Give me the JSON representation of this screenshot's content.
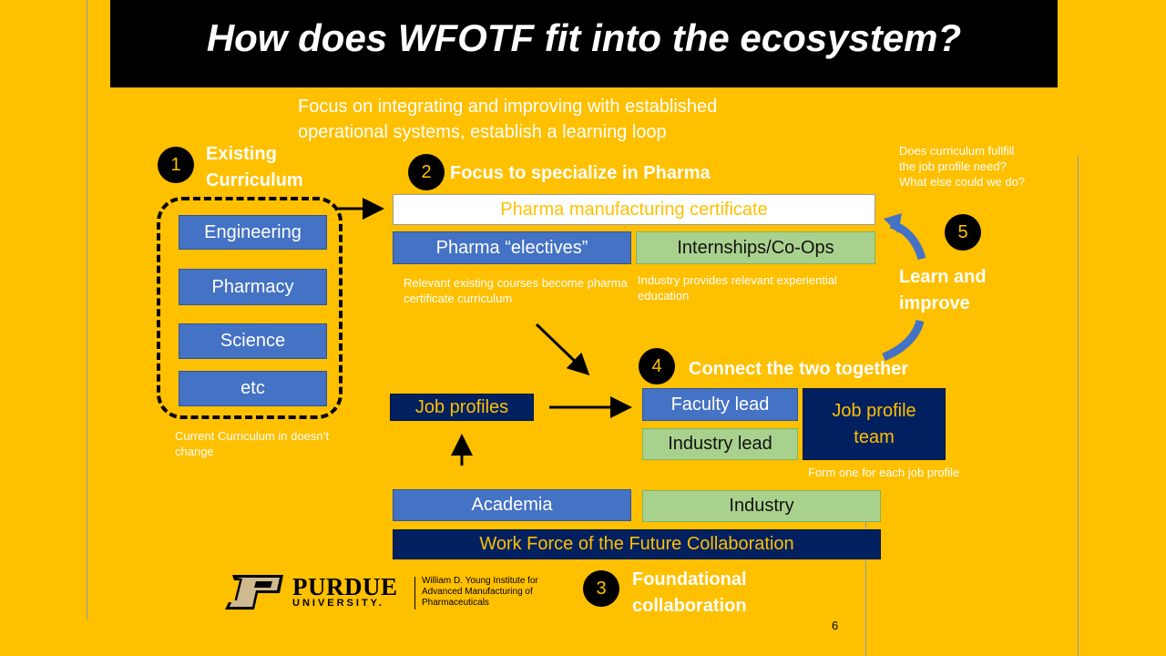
{
  "title": "How does WFOTF fit into the ecosystem?",
  "subtitle": "Focus on integrating and improving with established operational systems, establish a learning loop",
  "step1": {
    "number": "1",
    "heading": "Existing Curriculum",
    "courses": [
      "Engineering",
      "Pharmacy",
      "Science",
      "etc"
    ],
    "note": "Current Curriculum in doesn’t change"
  },
  "step2": {
    "number": "2",
    "heading": "Focus to specialize in Pharma",
    "certificate": "Pharma manufacturing certificate",
    "electives": "Pharma “electives”",
    "internships": "Internships/Co-Ops",
    "electives_note": "Relevant existing courses become pharma certificate curriculum",
    "internships_note": "Industry provides relevant experiential education"
  },
  "step3": {
    "number": "3",
    "heading": "Foundational collaboration",
    "academia": "Academia",
    "industry": "Industry",
    "collaboration": "Work Force of the Future Collaboration"
  },
  "step4": {
    "number": "4",
    "heading": "Connect the two together",
    "job_profiles": "Job profiles",
    "faculty_lead": "Faculty lead",
    "industry_lead": "Industry lead",
    "team": "Job profile team",
    "team_note": "Form one for each job profile"
  },
  "step5": {
    "number": "5",
    "heading": "Learn and improve",
    "question": "Does curriculum fullfill the job profile need?  What else could we do?"
  },
  "logo": {
    "wordmark": "PURDUE",
    "university": "UNIVERSITY.",
    "institute": "William D. Young Institute for Advanced Manufacturing of Pharmaceuticals"
  },
  "page_number": "6",
  "colors": {
    "background": "#FFC000",
    "blue": "#4472C4",
    "green": "#A9D18E",
    "navy": "#002060",
    "gold": "#CFB991"
  }
}
